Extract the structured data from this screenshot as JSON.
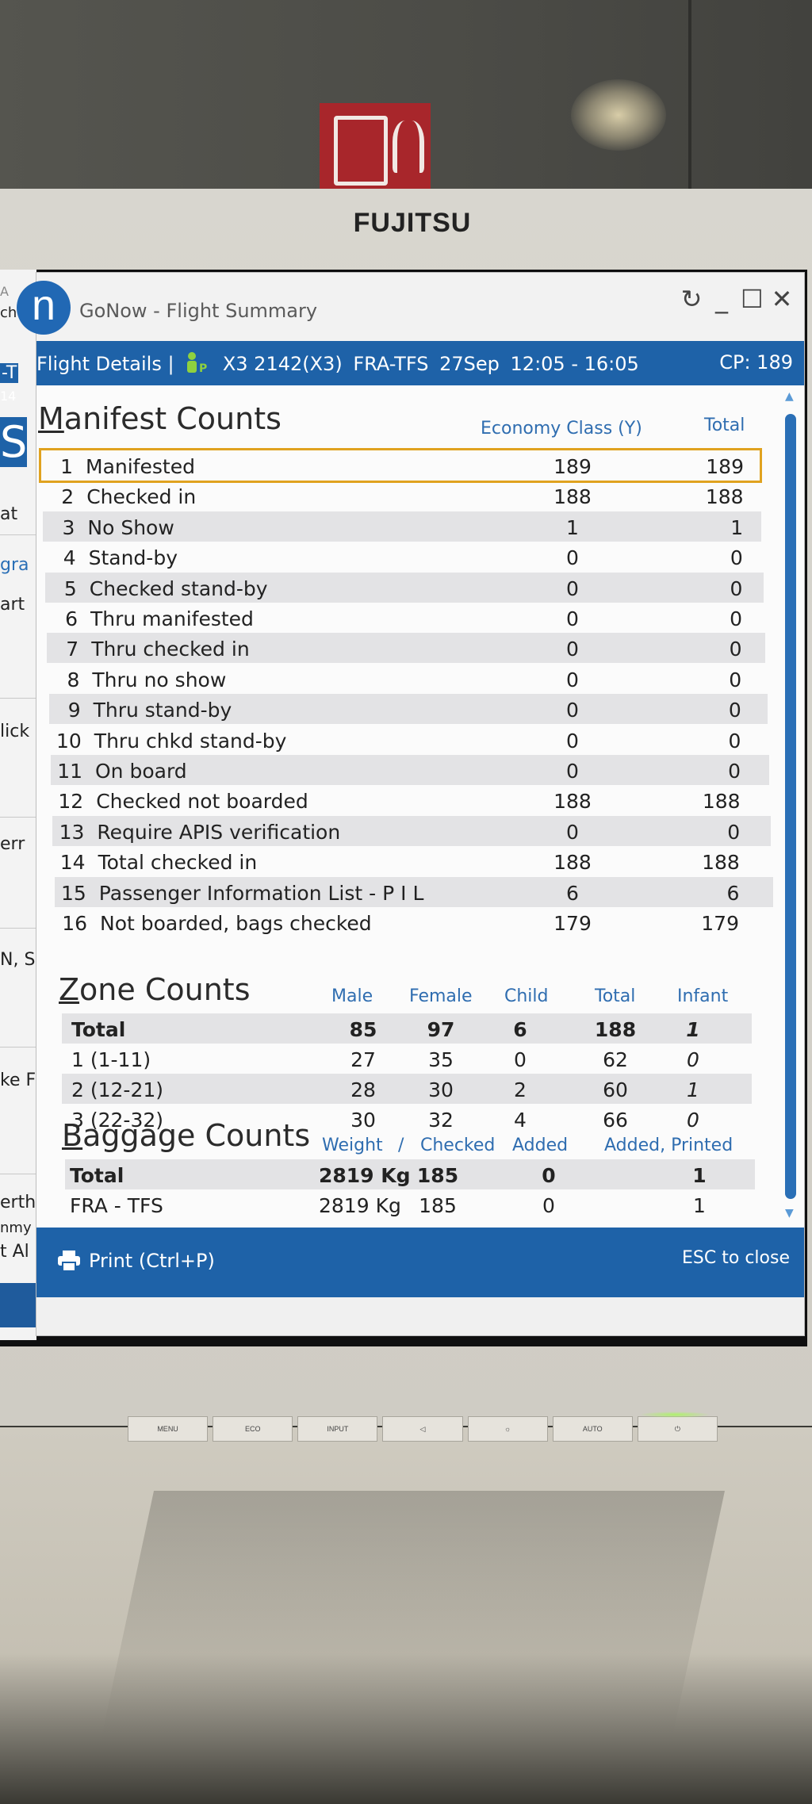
{
  "monitor": {
    "brand": "FUJITSU",
    "controls": [
      "MENU",
      "ECO",
      "INPUT",
      "",
      "",
      "AUTO",
      ""
    ]
  },
  "bg_app": {
    "fragments": [
      "A",
      "ch",
      "-T",
      "14",
      "S",
      "at",
      "gra",
      "art",
      "lick",
      "err",
      "N, S",
      "ke F",
      "erth",
      "nmy",
      "t Al"
    ]
  },
  "window": {
    "title": "GoNow - Flight Summary",
    "controls": [
      "↻",
      "_",
      "☐",
      "✕"
    ]
  },
  "header": {
    "label": "Flight Details |",
    "pax_icon": "passenger-icon",
    "flight": "X3 2142(X3)",
    "route": "FRA-TFS",
    "date": "27Sep",
    "time": "12:05 - 16:05",
    "cp": "CP: 189"
  },
  "manifest": {
    "title_first": "M",
    "title_rest": "anifest Counts",
    "col_economy": "Economy Class (Y)",
    "col_total": "Total",
    "rows": [
      {
        "num": "1",
        "label": "Manifested",
        "economy": "189",
        "total": "189"
      },
      {
        "num": "2",
        "label": "Checked in",
        "economy": "188",
        "total": "188"
      },
      {
        "num": "3",
        "label": "No Show",
        "economy": "1",
        "total": "1"
      },
      {
        "num": "4",
        "label": "Stand-by",
        "economy": "0",
        "total": "0"
      },
      {
        "num": "5",
        "label": "Checked stand-by",
        "economy": "0",
        "total": "0"
      },
      {
        "num": "6",
        "label": "Thru manifested",
        "economy": "0",
        "total": "0"
      },
      {
        "num": "7",
        "label": "Thru checked in",
        "economy": "0",
        "total": "0"
      },
      {
        "num": "8",
        "label": "Thru no show",
        "economy": "0",
        "total": "0"
      },
      {
        "num": "9",
        "label": "Thru stand-by",
        "economy": "0",
        "total": "0"
      },
      {
        "num": "10",
        "label": "Thru chkd stand-by",
        "economy": "0",
        "total": "0"
      },
      {
        "num": "11",
        "label": "On board",
        "economy": "0",
        "total": "0"
      },
      {
        "num": "12",
        "label": "Checked not boarded",
        "economy": "188",
        "total": "188"
      },
      {
        "num": "13",
        "label": "Require APIS verification",
        "economy": "0",
        "total": "0"
      },
      {
        "num": "14",
        "label": "Total checked in",
        "economy": "188",
        "total": "188"
      },
      {
        "num": "15",
        "label": "Passenger Information List - P I L",
        "economy": "6",
        "total": "6"
      },
      {
        "num": "16",
        "label": "Not boarded, bags checked",
        "economy": "179",
        "total": "179"
      }
    ]
  },
  "zone": {
    "title_first": "Z",
    "title_rest": "one Counts",
    "columns": [
      "Male",
      "Female",
      "Child",
      "Total",
      "Infant"
    ],
    "rows": [
      {
        "label": "Total",
        "male": "85",
        "female": "97",
        "child": "6",
        "total": "188",
        "infant": "1"
      },
      {
        "label": "1 (1-11)",
        "male": "27",
        "female": "35",
        "child": "0",
        "total": "62",
        "infant": "0"
      },
      {
        "label": "2 (12-21)",
        "male": "28",
        "female": "30",
        "child": "2",
        "total": "60",
        "infant": "1"
      },
      {
        "label": "3 (22-32)",
        "male": "30",
        "female": "32",
        "child": "4",
        "total": "66",
        "infant": "0"
      }
    ]
  },
  "baggage": {
    "title_first": "B",
    "title_rest": "aggage Counts",
    "col_weight": "Weight",
    "col_sep": "/",
    "col_checked": "Checked",
    "col_added": "Added",
    "col_added_printed": "Added, Printed",
    "rows": [
      {
        "label": "Total",
        "weight": "2819 Kg",
        "checked": "185",
        "added": "0",
        "added_printed": "1"
      },
      {
        "label": "FRA - TFS",
        "weight": "2819 Kg",
        "checked": "185",
        "added": "0",
        "added_printed": "1"
      }
    ]
  },
  "footer": {
    "print_label": "Print (Ctrl+P)",
    "esc_label": "ESC to close"
  },
  "colors": {
    "accent": "#1e62a8",
    "selection_outline": "#e0a21f",
    "row_alt": "#e3e3e5",
    "header_text_blue": "#2f6db0"
  }
}
